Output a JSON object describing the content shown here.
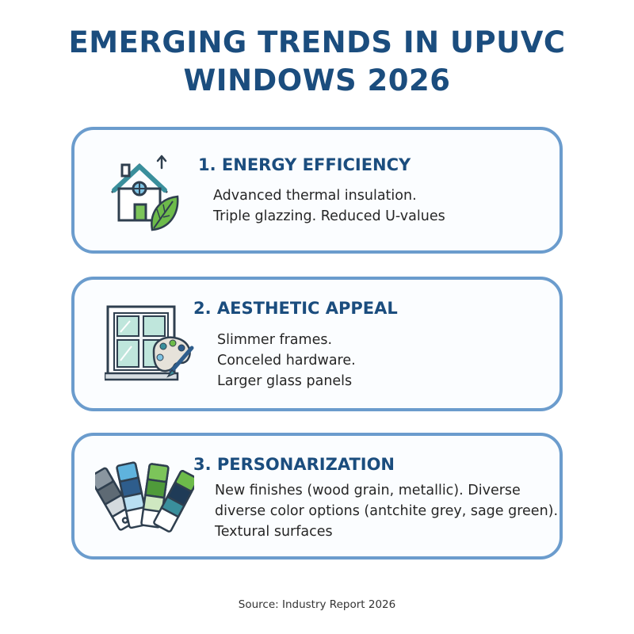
{
  "title": {
    "line1": "EMERGING TRENDS IN UPUVC",
    "line2": "WINDOWS 2026"
  },
  "trends": [
    {
      "heading": "1. ENERGY EFFICIENCY",
      "icon": "house-leaf-icon",
      "lines": [
        "Advanced thermal insulation.",
        "Triple glazzing. Reduced U-values"
      ]
    },
    {
      "heading": "2. AESTHETIC APPEAL",
      "icon": "window-palette-icon",
      "lines": [
        "Slimmer frames.",
        "Conceled hardware.",
        "Larger glass panels"
      ]
    },
    {
      "heading": "3. PERSONARIZATION",
      "icon": "color-swatches-icon",
      "lines": [
        "New finishes (wood grain, metallic). Diverse",
        "diverse color options (antchite grey, sage green).",
        "Textural surfaces"
      ]
    }
  ],
  "source": "Source: Industry Report 2026",
  "colors": {
    "title": "#1b4d7e",
    "card_border": "#6b9ccd",
    "body_text": "#262626",
    "icon_teal": "#3a8f9c",
    "icon_green": "#6dbb4a",
    "icon_blue": "#7fc3e3"
  }
}
